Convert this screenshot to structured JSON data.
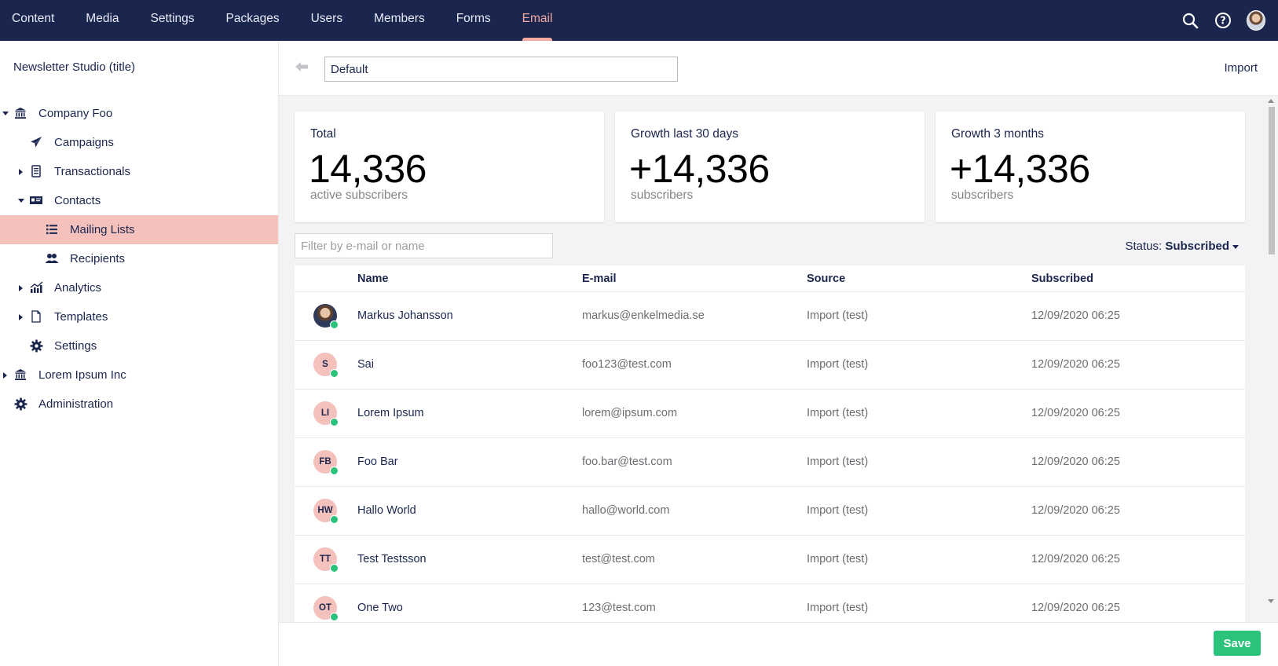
{
  "nav": {
    "items": [
      {
        "label": "Content"
      },
      {
        "label": "Media"
      },
      {
        "label": "Settings"
      },
      {
        "label": "Packages"
      },
      {
        "label": "Users"
      },
      {
        "label": "Members"
      },
      {
        "label": "Forms"
      },
      {
        "label": "Email",
        "active": true
      }
    ],
    "icons": [
      "search-icon",
      "help-icon",
      "user-avatar"
    ]
  },
  "sidebar": {
    "title": "Newsletter Studio (title)",
    "tree": [
      {
        "label": "Company Foo",
        "icon": "bank-icon",
        "caret": "down"
      },
      {
        "label": "Campaigns",
        "icon": "paper-plane-icon"
      },
      {
        "label": "Transactionals",
        "icon": "receipt-icon",
        "caret": "right"
      },
      {
        "label": "Contacts",
        "icon": "id-card-icon",
        "caret": "down"
      },
      {
        "label": "Mailing Lists",
        "icon": "list-icon",
        "selected": true
      },
      {
        "label": "Recipients",
        "icon": "users-icon"
      },
      {
        "label": "Analytics",
        "icon": "chart-icon",
        "caret": "right"
      },
      {
        "label": "Templates",
        "icon": "document-icon",
        "caret": "right"
      },
      {
        "label": "Settings",
        "icon": "gear-icon"
      },
      {
        "label": "Lorem Ipsum Inc",
        "icon": "bank-icon",
        "caret": "right"
      },
      {
        "label": "Administration",
        "icon": "gear-icon"
      }
    ]
  },
  "header": {
    "name_value": "Default",
    "import_label": "Import"
  },
  "stats": [
    {
      "title": "Total",
      "value": "14,336",
      "sub": "active subscribers"
    },
    {
      "title": "Growth last 30 days",
      "value": "+14,336",
      "sub": "subscribers"
    },
    {
      "title": "Growth 3 months",
      "value": "+14,336",
      "sub": "subscribers"
    }
  ],
  "filter": {
    "placeholder": "Filter by e-mail or name",
    "status_label": "Status:",
    "status_value": "Subscribed"
  },
  "table": {
    "headers": {
      "name": "Name",
      "email": "E-mail",
      "source": "Source",
      "subscribed": "Subscribed"
    },
    "rows": [
      {
        "initials": "",
        "photo": true,
        "name": "Markus Johansson",
        "email": "markus@enkelmedia.se",
        "source": "Import (test)",
        "subscribed": "12/09/2020 06:25"
      },
      {
        "initials": "S",
        "name": "Sai",
        "email": "foo123@test.com",
        "source": "Import (test)",
        "subscribed": "12/09/2020 06:25"
      },
      {
        "initials": "LI",
        "name": "Lorem Ipsum",
        "email": "lorem@ipsum.com",
        "source": "Import (test)",
        "subscribed": "12/09/2020 06:25"
      },
      {
        "initials": "FB",
        "name": "Foo Bar",
        "email": "foo.bar@test.com",
        "source": "Import (test)",
        "subscribed": "12/09/2020 06:25"
      },
      {
        "initials": "HW",
        "name": "Hallo World",
        "email": "hallo@world.com",
        "source": "Import (test)",
        "subscribed": "12/09/2020 06:25"
      },
      {
        "initials": "TT",
        "name": "Test Testsson",
        "email": "test@test.com",
        "source": "Import (test)",
        "subscribed": "12/09/2020 06:25"
      },
      {
        "initials": "OT",
        "name": "One Two",
        "email": "123@test.com",
        "source": "Import (test)",
        "subscribed": "12/09/2020 06:25"
      }
    ]
  },
  "footer": {
    "save_label": "Save"
  },
  "colors": {
    "nav_bg": "#1b264f",
    "accent": "#f5a99f",
    "selected_bg": "#f5c1bc",
    "save": "#2bc37c",
    "online": "#2bc37c"
  }
}
